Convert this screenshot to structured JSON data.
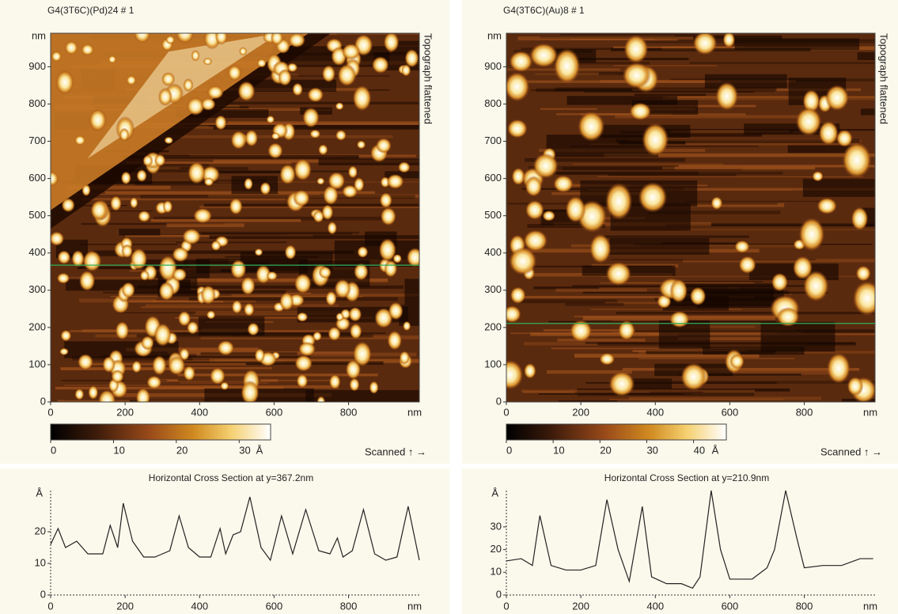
{
  "chart_data": [
    {
      "type": "image",
      "title": "G4(3T6C)(Pd)24 # 1",
      "side_label": "Topograph flattened",
      "xlim": [
        0,
        990
      ],
      "xticks": [
        0,
        200,
        400,
        600,
        800
      ],
      "x_unit": "nm",
      "ylim": [
        0,
        990
      ],
      "yticks": [
        0,
        100,
        200,
        300,
        400,
        500,
        600,
        700,
        800,
        900
      ],
      "y_unit": "nm",
      "colorbar": {
        "lim": [
          0,
          35
        ],
        "ticks": [
          0,
          10,
          20,
          30
        ],
        "unit": "Å"
      },
      "scan_label": "Scanned ↑ →",
      "cursor_y": 367.2,
      "cursor_color": "#2fae5a"
    },
    {
      "type": "line",
      "title": "Horizontal Cross Section at y=367.2nm",
      "x": [
        0,
        20,
        40,
        70,
        100,
        140,
        160,
        180,
        195,
        220,
        250,
        280,
        300,
        320,
        345,
        370,
        400,
        430,
        455,
        470,
        490,
        510,
        535,
        565,
        590,
        620,
        650,
        685,
        720,
        750,
        770,
        785,
        810,
        840,
        870,
        900,
        930,
        960,
        990
      ],
      "values": [
        16,
        21,
        15,
        17,
        13,
        13,
        22,
        15,
        29,
        17,
        12,
        12,
        13,
        14,
        25,
        15,
        12,
        12,
        21,
        13,
        19,
        20,
        31,
        15,
        11,
        25,
        13,
        27,
        14,
        13,
        18,
        12,
        14,
        27,
        13,
        11,
        12,
        28,
        11
      ],
      "color": "#222222",
      "xlim": [
        0,
        990
      ],
      "xticks": [
        0,
        200,
        400,
        600,
        800
      ],
      "x_unit": "nm",
      "ylim": [
        0,
        33
      ],
      "yticks": [
        0,
        10,
        20
      ],
      "y_unit": "Å"
    },
    {
      "type": "image",
      "title": "G4(3T6C)(Au)8 # 1",
      "side_label": "Topograph flattened",
      "xlim": [
        0,
        990
      ],
      "xticks": [
        0,
        200,
        400,
        600,
        800
      ],
      "x_unit": "nm",
      "ylim": [
        0,
        990
      ],
      "yticks": [
        0,
        100,
        200,
        300,
        400,
        500,
        600,
        700,
        800,
        900
      ],
      "y_unit": "nm",
      "colorbar": {
        "lim": [
          0,
          47
        ],
        "ticks": [
          0,
          10,
          20,
          30,
          40
        ],
        "unit": "Å"
      },
      "scan_label": "Scanned ↑ →",
      "cursor_y": 210.9,
      "cursor_color": "#2fae5a"
    },
    {
      "type": "line",
      "title": "Horizontal Cross Section at y=210.9nm",
      "x": [
        0,
        40,
        70,
        90,
        120,
        160,
        200,
        240,
        270,
        300,
        330,
        365,
        390,
        430,
        470,
        500,
        520,
        550,
        575,
        600,
        660,
        700,
        720,
        750,
        780,
        800,
        850,
        900,
        950,
        985
      ],
      "values": [
        15,
        16,
        13,
        35,
        13,
        11,
        11,
        13,
        42,
        20,
        6,
        39,
        8,
        5,
        5,
        3,
        8,
        46,
        20,
        7,
        7,
        12,
        20,
        46,
        25,
        12,
        13,
        13,
        16,
        16
      ],
      "color": "#222222",
      "xlim": [
        0,
        990
      ],
      "xticks": [
        0,
        200,
        400,
        600,
        800
      ],
      "x_unit": "nm",
      "ylim": [
        0,
        46
      ],
      "yticks": [
        0,
        10,
        20,
        30
      ],
      "y_unit": "Å"
    }
  ]
}
